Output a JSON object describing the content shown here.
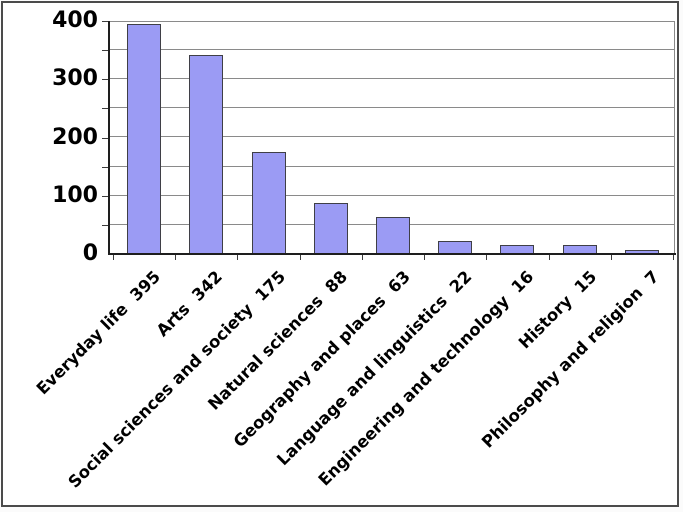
{
  "chart_data": {
    "type": "bar",
    "title": "",
    "xlabel": "",
    "ylabel": "",
    "categories": [
      "Everyday life",
      "Arts",
      "Social sciences and society",
      "Natural sciences",
      "Geography and places",
      "Language and linguistics",
      "Engineering and technology",
      "History",
      "Philosophy and religion"
    ],
    "values": [
      395,
      342,
      175,
      88,
      63,
      22,
      16,
      15,
      7
    ],
    "x_tick_label_format": "{category}  {value}",
    "x_label_rotation_deg": 45,
    "y_axis": {
      "min": 0,
      "max": 400,
      "major_tick_step": 100,
      "gridline_step": 50,
      "tick_labels": [
        "0",
        "100",
        "200",
        "300",
        "400"
      ]
    },
    "grid": true,
    "legend": false,
    "styles": {
      "bar_fill": "#9b9bf4",
      "bar_border": "#3f3f46",
      "gridline": "#8a8a8a",
      "plot_border": "#8a8a8a",
      "axis": "#1e1e1e",
      "frame_border": "#4b4b4b",
      "background": "#ffffff",
      "text": "#000000"
    }
  }
}
